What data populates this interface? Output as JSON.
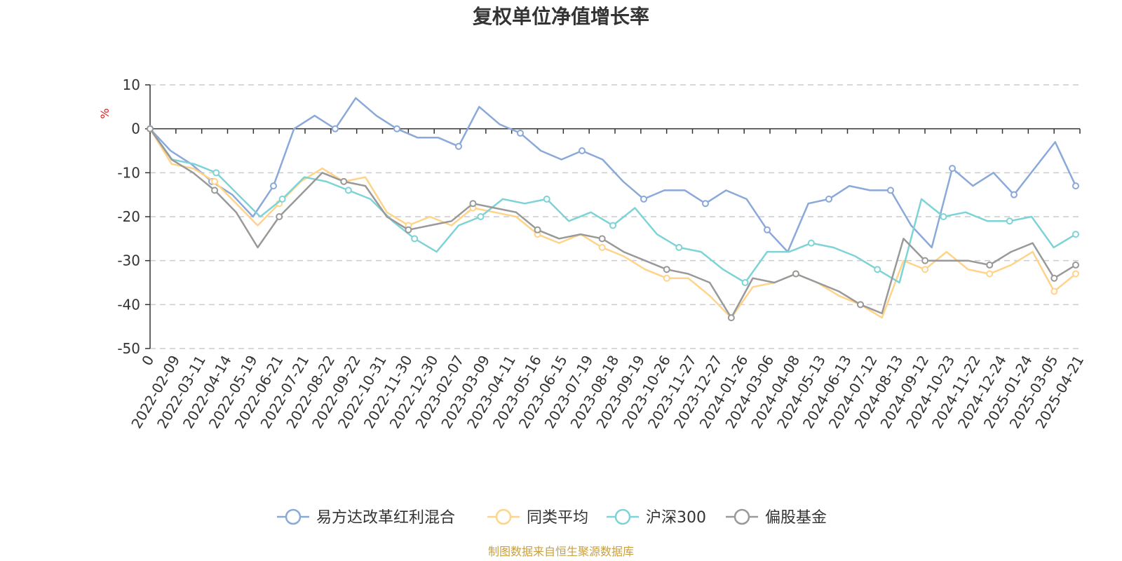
{
  "chart_data": {
    "type": "line",
    "title": "复权单位净值增长率",
    "ylabel": "%",
    "ylim": [
      -50,
      10
    ],
    "yticks": [
      10,
      0,
      -10,
      -20,
      -30,
      -40,
      -50
    ],
    "grid": "horizontal-dashed",
    "legend_position": "bottom",
    "source": "制图数据来自恒生聚源数据库",
    "xtick_labels": [
      "0",
      "2022-02-09",
      "2022-03-11",
      "2022-04-14",
      "2022-05-19",
      "2022-06-21",
      "2022-07-21",
      "2022-08-22",
      "2022-09-22",
      "2022-10-31",
      "2022-11-30",
      "2022-12-30",
      "2023-02-07",
      "2023-03-09",
      "2023-04-11",
      "2023-05-16",
      "2023-06-15",
      "2023-07-19",
      "2023-08-18",
      "2023-09-19",
      "2023-10-26",
      "2023-11-27",
      "2023-12-27",
      "2024-01-26",
      "2024-03-06",
      "2024-04-08",
      "2024-05-13",
      "2024-06-13",
      "2024-07-12",
      "2024-08-13",
      "2024-09-12",
      "2024-10-23",
      "2024-11-22",
      "2024-12-24",
      "2025-01-24",
      "2025-03-05",
      "2025-04-21"
    ],
    "series": [
      {
        "name": "易方达改革红利混合",
        "color": "#8aa9d9",
        "values": [
          0,
          -5,
          -8,
          -12,
          -15,
          -20,
          -13,
          0,
          3,
          0,
          7,
          3,
          0,
          -2,
          -2,
          -4,
          5,
          1,
          -1,
          -5,
          -7,
          -5,
          -7,
          -12,
          -16,
          -14,
          -14,
          -17,
          -14,
          -16,
          -23,
          -28,
          -17,
          -16,
          -13,
          -14,
          -14,
          -22,
          -27,
          -9,
          -13,
          -10,
          -15,
          -9,
          -3,
          -13
        ]
      },
      {
        "name": "同类平均",
        "color": "#ffd48a",
        "values": [
          0,
          -8,
          -9,
          -12,
          -17,
          -22,
          -17,
          -12,
          -9,
          -12,
          -11,
          -19,
          -22,
          -20,
          -22,
          -18,
          -19,
          -20,
          -24,
          -26,
          -24,
          -27,
          -29,
          -32,
          -34,
          -34,
          -38,
          -43,
          -36,
          -35,
          -33,
          -35,
          -38,
          -40,
          -43,
          -30,
          -32,
          -28,
          -32,
          -33,
          -31,
          -28,
          -37,
          -33
        ]
      },
      {
        "name": "沪深300",
        "color": "#7ed3d6",
        "values": [
          0,
          -7,
          -8,
          -10,
          -15,
          -20,
          -16,
          -11,
          -12,
          -14,
          -16,
          -21,
          -25,
          -28,
          -22,
          -20,
          -16,
          -17,
          -16,
          -21,
          -19,
          -22,
          -18,
          -24,
          -27,
          -28,
          -32,
          -35,
          -28,
          -28,
          -26,
          -27,
          -29,
          -32,
          -35,
          -16,
          -20,
          -19,
          -21,
          -21,
          -20,
          -27,
          -24
        ]
      },
      {
        "name": "偏股基金",
        "color": "#999999",
        "values": [
          0,
          -7,
          -10,
          -14,
          -19,
          -27,
          -20,
          -15,
          -10,
          -12,
          -13,
          -20,
          -23,
          -22,
          -21,
          -17,
          -18,
          -19,
          -23,
          -25,
          -24,
          -25,
          -28,
          -30,
          -32,
          -33,
          -35,
          -43,
          -34,
          -35,
          -33,
          -35,
          -37,
          -40,
          -42,
          -25,
          -30,
          -30,
          -30,
          -31,
          -28,
          -26,
          -34,
          -31
        ]
      }
    ]
  }
}
